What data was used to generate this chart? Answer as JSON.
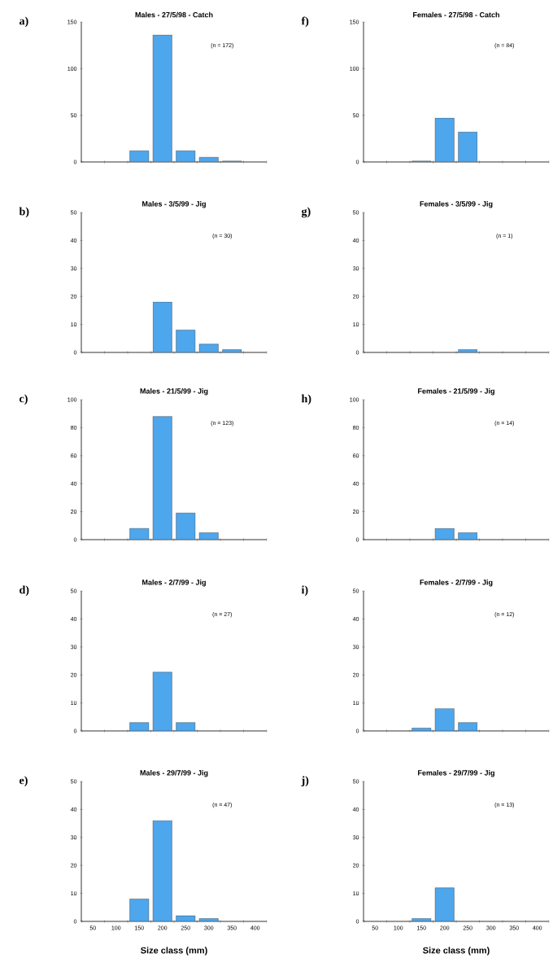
{
  "chart_data": [
    {
      "type": "bar",
      "title": "Males - 27/5/98 - Catch",
      "annotations": [
        "a)",
        "(n = 172)"
      ],
      "categories": [
        "50",
        "100",
        "150",
        "200",
        "250",
        "300",
        "350",
        "400"
      ],
      "values": [
        0,
        0,
        12,
        136,
        12,
        5,
        1,
        0
      ],
      "color": "#4ea6ec",
      "ylim": [
        0,
        150
      ],
      "yticks": [
        0,
        50,
        100,
        150
      ],
      "tick_labels": "y"
    },
    {
      "type": "bar",
      "title": "Males - 3/5/99 - Jig",
      "annotations": [
        "b)",
        "(n = 30)"
      ],
      "categories": [
        "50",
        "100",
        "150",
        "200",
        "250",
        "300",
        "350",
        "400"
      ],
      "values": [
        0,
        0,
        0,
        18,
        8,
        3,
        1,
        0
      ],
      "color": "#4ea6ec",
      "ylim": [
        0,
        50
      ],
      "yticks": [
        0,
        10,
        20,
        30,
        40,
        50
      ],
      "tick_labels": "y"
    },
    {
      "type": "bar",
      "title": "Males - 21/5/99 - Jig",
      "annotations": [
        "c)",
        "(n = 123)"
      ],
      "categories": [
        "50",
        "100",
        "150",
        "200",
        "250",
        "300",
        "350",
        "400"
      ],
      "values": [
        0,
        0,
        8,
        88,
        19,
        5,
        0,
        0
      ],
      "color": "#4ea6ec",
      "ylim": [
        0,
        100
      ],
      "yticks": [
        0,
        20,
        40,
        60,
        80,
        100
      ],
      "tick_labels": "y"
    },
    {
      "type": "bar",
      "title": "Males - 2/7/99 - Jig",
      "annotations": [
        "d)",
        "(n = 27)"
      ],
      "categories": [
        "50",
        "100",
        "150",
        "200",
        "250",
        "300",
        "350",
        "400"
      ],
      "values": [
        0,
        0,
        3,
        21,
        3,
        0,
        0,
        0
      ],
      "color": "#4ea6ec",
      "ylim": [
        0,
        50
      ],
      "yticks": [
        0,
        10,
        20,
        30,
        40,
        50
      ],
      "tick_labels": "y"
    },
    {
      "type": "bar",
      "title": "Males - 29/7/99 - Jig",
      "xlabel": "Size class (mm)",
      "annotations": [
        "e)",
        "(n = 47)"
      ],
      "categories": [
        "50",
        "100",
        "150",
        "200",
        "250",
        "300",
        "350",
        "400"
      ],
      "values": [
        0,
        0,
        8,
        36,
        2,
        1,
        0,
        0
      ],
      "color": "#4ea6ec",
      "ylim": [
        0,
        50
      ],
      "yticks": [
        0,
        10,
        20,
        30,
        40,
        50
      ]
    },
    {
      "type": "bar",
      "title": "Females - 27/5/98 - Catch",
      "annotations": [
        "f)",
        "(n = 84)"
      ],
      "categories": [
        "50",
        "100",
        "150",
        "200",
        "250",
        "300",
        "350",
        "400"
      ],
      "values": [
        0,
        0,
        1,
        47,
        32,
        0,
        0,
        0
      ],
      "color": "#4ea6ec",
      "ylim": [
        0,
        150
      ],
      "yticks": [
        0,
        50,
        100,
        150
      ],
      "tick_labels": "y"
    },
    {
      "type": "bar",
      "title": "Females - 3/5/99 - Jig",
      "annotations": [
        "g)",
        "(n = 1)"
      ],
      "categories": [
        "50",
        "100",
        "150",
        "200",
        "250",
        "300",
        "350",
        "400"
      ],
      "values": [
        0,
        0,
        0,
        0,
        1,
        0,
        0,
        0
      ],
      "color": "#4ea6ec",
      "ylim": [
        0,
        50
      ],
      "yticks": [
        0,
        10,
        20,
        30,
        40,
        50
      ],
      "tick_labels": "y"
    },
    {
      "type": "bar",
      "title": "Females - 21/5/99 - Jig",
      "annotations": [
        "h)",
        "(n = 14)"
      ],
      "categories": [
        "50",
        "100",
        "150",
        "200",
        "250",
        "300",
        "350",
        "400"
      ],
      "values": [
        0,
        0,
        0,
        8,
        5,
        0,
        0,
        0
      ],
      "color": "#4ea6ec",
      "ylim": [
        0,
        100
      ],
      "yticks": [
        0,
        20,
        40,
        60,
        80,
        100
      ],
      "tick_labels": "y"
    },
    {
      "type": "bar",
      "title": "Females - 2/7/99 - Jig",
      "annotations": [
        "i)",
        "(n = 12)"
      ],
      "categories": [
        "50",
        "100",
        "150",
        "200",
        "250",
        "300",
        "350",
        "400"
      ],
      "values": [
        0,
        0,
        1,
        8,
        3,
        0,
        0,
        0
      ],
      "color": "#4ea6ec",
      "ylim": [
        0,
        50
      ],
      "yticks": [
        0,
        10,
        20,
        30,
        40,
        50
      ],
      "tick_labels": "y"
    },
    {
      "type": "bar",
      "title": "Females - 29/7/99 - Jig",
      "xlabel": "Size class (mm)",
      "annotations": [
        "j)",
        "(n = 13)"
      ],
      "categories": [
        "50",
        "100",
        "150",
        "200",
        "250",
        "300",
        "350",
        "400"
      ],
      "values": [
        0,
        0,
        1,
        12,
        0,
        0,
        0,
        0
      ],
      "color": "#4ea6ec",
      "ylim": [
        0,
        50
      ],
      "yticks": [
        0,
        10,
        20,
        30,
        40,
        50
      ]
    }
  ]
}
